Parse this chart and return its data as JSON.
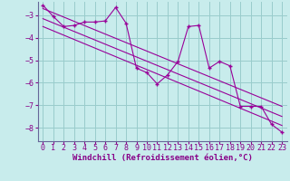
{
  "background_color": "#c8ecec",
  "line_color": "#990099",
  "grid_color": "#99cccc",
  "axis_color": "#666699",
  "xlabel": "Windchill (Refroidissement éolien,°C)",
  "ylim": [
    -8.6,
    -2.4
  ],
  "xlim": [
    -0.5,
    23.5
  ],
  "yticks": [
    -8,
    -7,
    -6,
    -5,
    -4,
    -3
  ],
  "xticks": [
    0,
    1,
    2,
    3,
    4,
    5,
    6,
    7,
    8,
    9,
    10,
    11,
    12,
    13,
    14,
    15,
    16,
    17,
    18,
    19,
    20,
    21,
    22,
    23
  ],
  "data_x": [
    0,
    1,
    2,
    3,
    4,
    5,
    6,
    7,
    8,
    9,
    10,
    11,
    12,
    13,
    14,
    15,
    16,
    17,
    18,
    19,
    20,
    21,
    22,
    23
  ],
  "data_y": [
    -2.55,
    -3.05,
    -3.5,
    -3.45,
    -3.3,
    -3.3,
    -3.25,
    -2.65,
    -3.35,
    -5.35,
    -5.55,
    -6.05,
    -5.65,
    -5.05,
    -3.5,
    -3.45,
    -5.35,
    -5.05,
    -5.25,
    -7.05,
    -7.05,
    -7.05,
    -7.85,
    -8.2
  ],
  "trend1_x": [
    0,
    23
  ],
  "trend1_y": [
    -2.7,
    -7.05
  ],
  "trend2_x": [
    0,
    23
  ],
  "trend2_y": [
    -3.15,
    -7.5
  ],
  "trend3_x": [
    0,
    23
  ],
  "trend3_y": [
    -3.5,
    -7.9
  ],
  "xlabel_fontsize": 6.5,
  "tick_fontsize": 6.0,
  "label_color": "#880088"
}
